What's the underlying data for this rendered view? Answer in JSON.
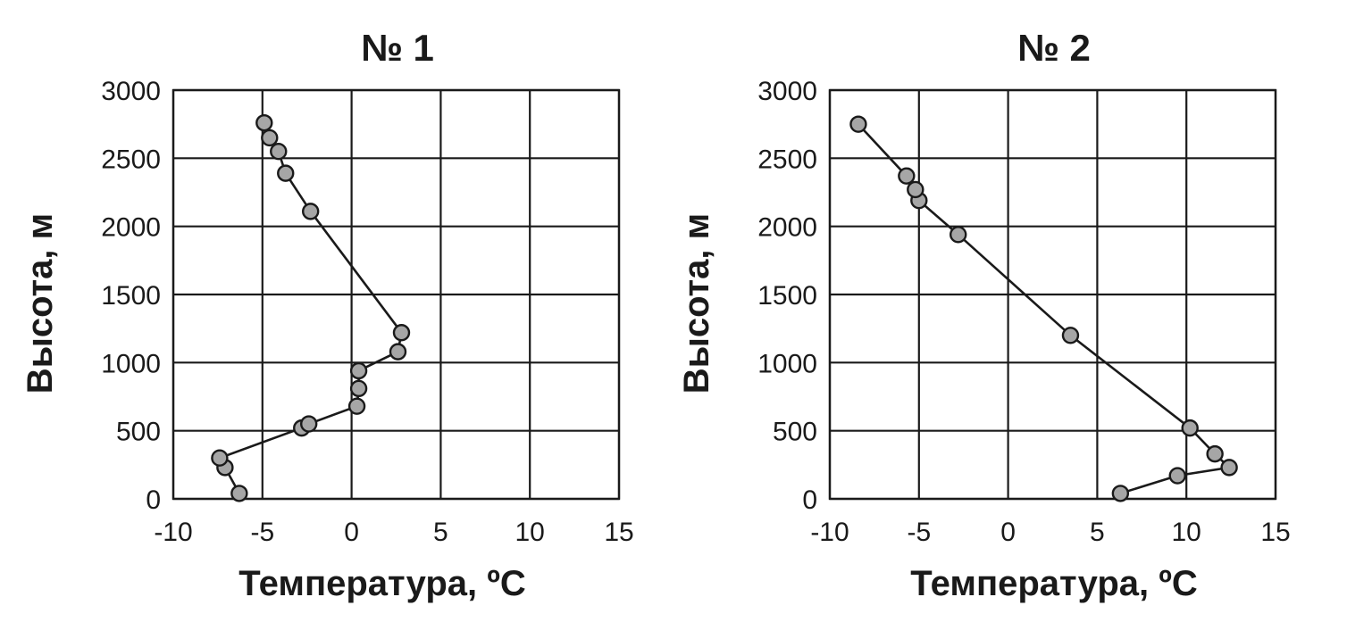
{
  "chart_data": [
    {
      "type": "line",
      "title": "№ 1",
      "xlabel": "Температура, ºC",
      "ylabel": "Высота, м",
      "xlim": [
        -10,
        15
      ],
      "ylim": [
        0,
        3000
      ],
      "x_ticks": [
        -10,
        -5,
        0,
        5,
        10,
        15
      ],
      "y_ticks": [
        0,
        500,
        1000,
        1500,
        2000,
        2500,
        3000
      ],
      "x_tick_labels": [
        "-10",
        "-5",
        "0",
        "5",
        "10",
        "15"
      ],
      "y_tick_labels": [
        "0",
        "500",
        "1000",
        "1500",
        "2000",
        "2500",
        "3000"
      ],
      "grid": true,
      "marker_color": "#a6a6a6",
      "line_color": "#1a1a1a",
      "series": [
        {
          "points": [
            {
              "x": -6.3,
              "y": 40
            },
            {
              "x": -7.1,
              "y": 230
            },
            {
              "x": -7.4,
              "y": 300
            },
            {
              "x": -2.8,
              "y": 520
            },
            {
              "x": -2.4,
              "y": 550
            },
            {
              "x": 0.3,
              "y": 680
            },
            {
              "x": 0.4,
              "y": 810
            },
            {
              "x": 0.4,
              "y": 940
            },
            {
              "x": 2.6,
              "y": 1080
            },
            {
              "x": 2.8,
              "y": 1220
            },
            {
              "x": -2.3,
              "y": 2110
            },
            {
              "x": -3.7,
              "y": 2390
            },
            {
              "x": -4.1,
              "y": 2550
            },
            {
              "x": -4.6,
              "y": 2650
            },
            {
              "x": -4.9,
              "y": 2760
            }
          ]
        }
      ]
    },
    {
      "type": "line",
      "title": "№ 2",
      "xlabel": "Температура, ºC",
      "ylabel": "Высота, м",
      "xlim": [
        -10,
        15
      ],
      "ylim": [
        0,
        3000
      ],
      "x_ticks": [
        -10,
        -5,
        0,
        5,
        10,
        15
      ],
      "y_ticks": [
        0,
        500,
        1000,
        1500,
        2000,
        2500,
        3000
      ],
      "x_tick_labels": [
        "-10",
        "-5",
        "0",
        "5",
        "10",
        "15"
      ],
      "y_tick_labels": [
        "0",
        "500",
        "1000",
        "1500",
        "2000",
        "2500",
        "3000"
      ],
      "grid": true,
      "marker_color": "#a6a6a6",
      "line_color": "#1a1a1a",
      "series": [
        {
          "points": [
            {
              "x": 6.3,
              "y": 40
            },
            {
              "x": 9.5,
              "y": 170
            },
            {
              "x": 12.4,
              "y": 230
            },
            {
              "x": 11.6,
              "y": 330
            },
            {
              "x": 10.2,
              "y": 520
            },
            {
              "x": 3.5,
              "y": 1200
            },
            {
              "x": -2.8,
              "y": 1940
            },
            {
              "x": -5.0,
              "y": 2190
            },
            {
              "x": -5.2,
              "y": 2270
            },
            {
              "x": -5.7,
              "y": 2370
            },
            {
              "x": -8.4,
              "y": 2750
            }
          ]
        }
      ]
    }
  ]
}
